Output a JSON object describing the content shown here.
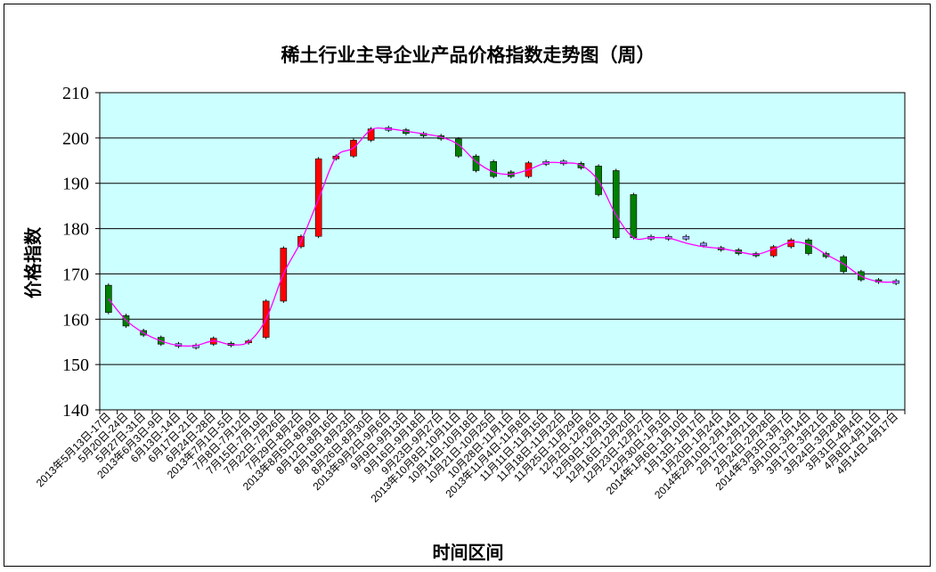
{
  "chart_data": {
    "type": "candlestick",
    "title": "稀土行业主导企业产品价格指数走势图（周）",
    "xlabel": "时间区间",
    "ylabel": "价格指数",
    "ylim": [
      140,
      210
    ],
    "yticks": [
      140,
      150,
      160,
      170,
      180,
      190,
      200,
      210
    ],
    "grid": true,
    "legend": "none",
    "colors": {
      "plot_bg": "#CCFFFF",
      "up": "#FF0000",
      "down": "#008000",
      "flat": "#9999FF",
      "line": "#FF00FF",
      "border": "#000000"
    },
    "categories": [
      "2013年5月13日-17日",
      "5月20日-24日",
      "5月27日-31日",
      "2013年6月3日-9日",
      "6月13日-14日",
      "6月17日-21日",
      "6月24日-28日",
      "2013年7月1日-5日",
      "7月8日-7月12日",
      "7月15日-7月19日",
      "7月22日-7月26日",
      "7月29日-8月2日",
      "2013年8月5日-8月9日",
      "8月12日-8月16日",
      "8月19日-8月23日",
      "8月26日-8月30日",
      "2013年9月2日-9月6日",
      "9月9日-9月13日",
      "9月16日-9月18日",
      "9月23日-9月27日",
      "2013年10月8日-10月11日",
      "10月14日-10月18日",
      "10月21日-10月25日",
      "10月28日-11月1日",
      "2013年11月4日-11月8日",
      "11月11日-11月15日",
      "11月18日-11月22日",
      "11月25日-11月29日",
      "12月2日-12月6日",
      "12月9日-12月13日",
      "12月16日-12月20日",
      "12月23日-12月27日",
      "12月30日-1月3日",
      "2014年1月6日-1月10日",
      "1月13日-1月17日",
      "1月20日-1月24日",
      "2014年2月10日-2月14日",
      "2月17日-2月21日",
      "2月24日-2月28日",
      "2014年3月3日-3月7日",
      "3月10日-3月14日",
      "3月17日-3月21日",
      "3月24日-3月28日",
      "3月31日-4月4日",
      "4月8日-4月11日",
      "4月14日-4月17日"
    ],
    "tick_labels": [
      "2013年5月13日-17日",
      "5月20日-24日",
      "5月27日-31日",
      "2013年6月3日-9日",
      "6月13日-14日",
      "6月17日-21日",
      "6月24日-28日",
      "2013年7月1日-5日",
      "7月8日-7月12日",
      "7月15日-7月19日",
      "7月22日-7月26日",
      "7月29日-8月2日",
      "2013年8月5日-8月9日",
      "8月12日-8月16日",
      "8月19日-8月23日",
      "8月26日-8月30日",
      "2013年9月2日-9月6日",
      "9月9日-9月13日",
      "9月16日-9月18日",
      "9月23日-9月27日",
      "2013年10月8日-10月11日",
      "10月14日-10月18日",
      "10月21日-10月25日",
      "10月28日-11月1日",
      "2013年11月4日-11月8日",
      "11月11日-11月15日",
      "11月18日-11月22日",
      "11月25日-11月29日",
      "12月2日-12月6日",
      "12月9日-12月13日",
      "12月16日-12月20日",
      "12月23日-12月27日",
      "12月30日-1月3日",
      "2014年1月6日-1月10日",
      "1月13日-1月17日",
      "1月20日-1月24日",
      "2014年2月10日-2月14日",
      "2月17日-2月21日",
      "2月24日-2月28日",
      "2014年3月3日-3月7日",
      "3月10日-3月14日",
      "3月17日-3月21日",
      "3月24日-3月28日",
      "3月31日-4月4日",
      "4月8日-4月11日",
      "4月14日-4月17日"
    ],
    "series": [
      {
        "open": [
          167.5,
          160.8,
          157.5,
          156.0,
          154.3,
          154.0,
          154.5,
          154.7,
          154.8,
          156.0,
          164.0,
          176.0,
          178.3,
          195.4,
          196.0,
          199.5,
          202.0,
          201.8,
          201.0,
          200.5,
          199.8,
          196.0,
          194.8,
          192.5,
          191.5,
          194.5,
          194.6,
          194.4,
          193.8,
          192.8,
          187.5,
          178.0,
          178.0,
          178.0,
          176.5,
          175.8,
          175.3,
          174.5,
          174.0,
          176.0,
          177.5,
          174.5,
          173.8,
          170.5,
          168.7,
          168.2
        ],
        "close": [
          161.5,
          158.5,
          156.5,
          154.5,
          154.3,
          154.0,
          155.8,
          154.2,
          155.2,
          164.0,
          175.7,
          178.3,
          195.4,
          196.0,
          199.5,
          202.0,
          201.8,
          201.0,
          200.5,
          199.8,
          196.0,
          192.8,
          191.5,
          191.5,
          194.5,
          194.6,
          194.4,
          193.4,
          187.5,
          178.0,
          178.0,
          178.0,
          178.0,
          177.8,
          176.3,
          175.3,
          174.5,
          174.0,
          176.0,
          177.5,
          174.5,
          173.8,
          170.5,
          168.7,
          168.2,
          168.2
        ],
        "line": [
          164.5,
          159.8,
          157.0,
          155.2,
          154.2,
          154.2,
          155.2,
          154.4,
          155.0,
          160.0,
          170.0,
          177.2,
          186.5,
          195.8,
          197.8,
          201.8,
          202.0,
          201.5,
          200.9,
          200.2,
          198.5,
          194.8,
          192.5,
          192.0,
          193.0,
          194.5,
          194.5,
          194.0,
          190.5,
          183.0,
          178.0,
          178.0,
          177.9,
          176.8,
          176.0,
          175.6,
          174.9,
          174.3,
          175.5,
          177.0,
          176.5,
          174.3,
          172.2,
          169.5,
          168.3,
          168.2
        ]
      }
    ]
  }
}
